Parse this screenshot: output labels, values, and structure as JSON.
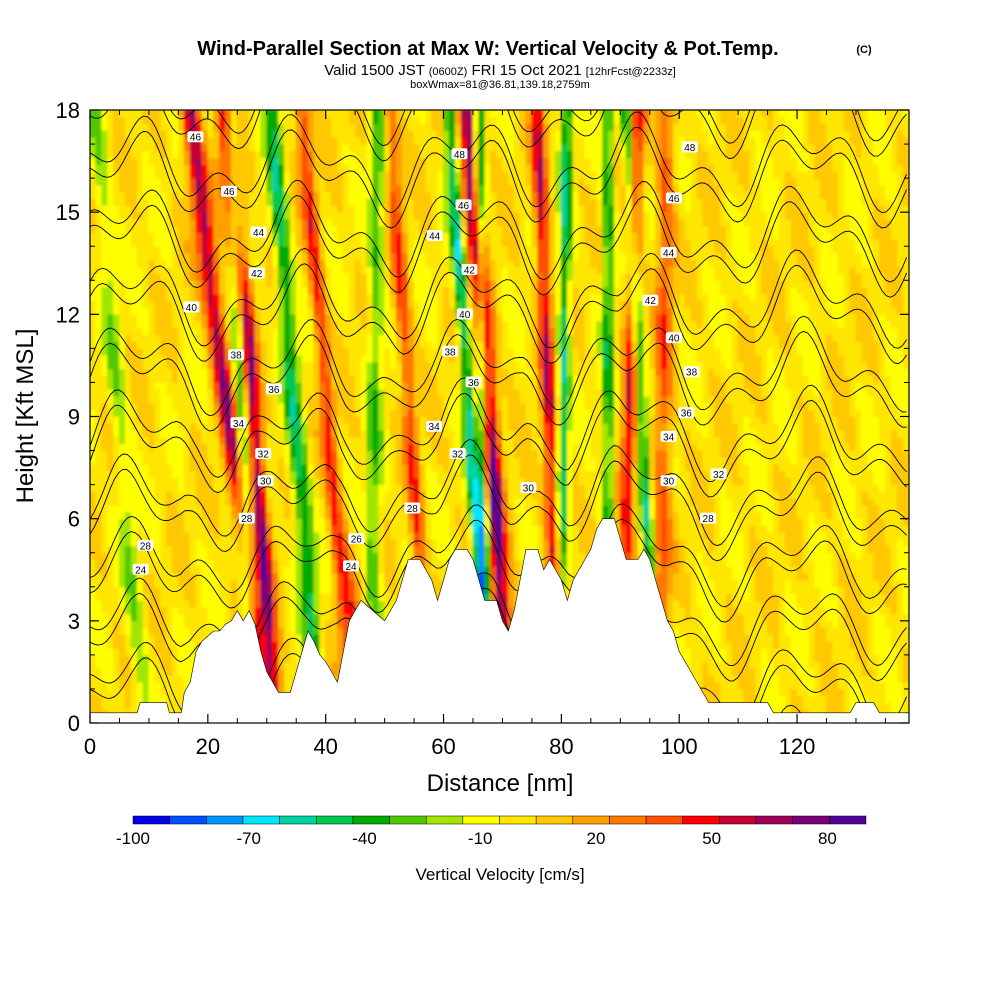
{
  "chart_data": {
    "type": "heatmap",
    "title": "Wind-Parallel Section at Max W: Vertical Velocity & Pot.Temp.",
    "copyright": "(C)",
    "subtitle": {
      "a": "Valid 1500 JST",
      "b": "(0600Z)",
      "c": "FRI 15 Oct 2021",
      "d": "[12hrFcst@2233z]"
    },
    "subtitle2": "boxWmax=81@36.81,139.18,2759m",
    "xlabel": "Distance [nm]",
    "ylabel": "Height [Kft MSL]",
    "xlim": [
      0,
      139
    ],
    "ylim": [
      0,
      18
    ],
    "x_ticks": [
      0,
      20,
      40,
      60,
      80,
      100,
      120
    ],
    "x_tick_labels": [
      "0",
      "20",
      "40",
      "60",
      "80",
      "100",
      "120"
    ],
    "y_ticks": [
      0,
      3,
      6,
      9,
      12,
      15,
      18
    ],
    "y_tick_labels": [
      "0",
      "3",
      "6",
      "9",
      "12",
      "15",
      "18"
    ],
    "colorbar": {
      "label": "Vertical Velocity [cm/s]",
      "tick_labels": [
        "-100",
        "-70",
        "-40",
        "-10",
        "20",
        "50",
        "80"
      ],
      "tick_values": [
        -100,
        -70,
        -40,
        -10,
        20,
        50,
        80
      ],
      "range": [
        -100,
        90
      ],
      "colors": [
        "#0000e6",
        "#0050ff",
        "#0096ff",
        "#00e6ff",
        "#00d2a0",
        "#00c850",
        "#00aa00",
        "#50c800",
        "#a0e600",
        "#ffff00",
        "#ffe600",
        "#ffc800",
        "#ffa000",
        "#ff7800",
        "#ff5000",
        "#ff0000",
        "#c80032",
        "#a0005a",
        "#780078",
        "#500096"
      ]
    },
    "terrain_kft": [
      [
        0,
        0.3
      ],
      [
        8,
        0.3
      ],
      [
        8.5,
        0.6
      ],
      [
        13,
        0.6
      ],
      [
        13.5,
        0.3
      ],
      [
        15.5,
        0.3
      ],
      [
        16,
        0.9
      ],
      [
        17,
        1.2
      ],
      [
        18,
        2.1
      ],
      [
        19,
        2.4
      ],
      [
        21,
        2.7
      ],
      [
        22,
        2.7
      ],
      [
        23,
        2.9
      ],
      [
        24,
        3.0
      ],
      [
        25,
        3.3
      ],
      [
        26,
        3.0
      ],
      [
        27,
        3.3
      ],
      [
        28,
        2.9
      ],
      [
        29,
        2.1
      ],
      [
        30,
        1.5
      ],
      [
        31,
        1.2
      ],
      [
        32,
        0.9
      ],
      [
        34,
        0.9
      ],
      [
        35,
        1.5
      ],
      [
        36,
        2.1
      ],
      [
        37,
        2.7
      ],
      [
        38,
        2.4
      ],
      [
        39,
        2.0
      ],
      [
        40,
        1.8
      ],
      [
        41,
        1.5
      ],
      [
        42,
        1.2
      ],
      [
        43,
        2.1
      ],
      [
        44,
        3.0
      ],
      [
        46,
        3.6
      ],
      [
        48,
        3.3
      ],
      [
        50,
        3.0
      ],
      [
        52,
        3.6
      ],
      [
        53,
        4.2
      ],
      [
        54,
        4.8
      ],
      [
        56,
        4.8
      ],
      [
        58,
        4.2
      ],
      [
        59,
        3.6
      ],
      [
        60,
        4.2
      ],
      [
        61,
        4.8
      ],
      [
        62,
        5.1
      ],
      [
        64,
        5.1
      ],
      [
        65,
        4.8
      ],
      [
        66,
        4.2
      ],
      [
        67,
        3.6
      ],
      [
        69,
        3.6
      ],
      [
        70,
        3.0
      ],
      [
        71,
        2.7
      ],
      [
        72,
        3.3
      ],
      [
        73,
        4.2
      ],
      [
        74,
        5.1
      ],
      [
        76,
        5.1
      ],
      [
        77,
        4.5
      ],
      [
        78,
        4.8
      ],
      [
        80,
        4.2
      ],
      [
        81,
        3.6
      ],
      [
        82,
        4.2
      ],
      [
        83,
        4.5
      ],
      [
        84,
        4.8
      ],
      [
        85,
        5.1
      ],
      [
        86,
        5.7
      ],
      [
        87,
        6.0
      ],
      [
        89,
        6.0
      ],
      [
        90,
        5.4
      ],
      [
        91,
        4.8
      ],
      [
        93,
        4.8
      ],
      [
        94,
        5.1
      ],
      [
        95,
        4.8
      ],
      [
        96,
        4.2
      ],
      [
        97,
        3.6
      ],
      [
        98,
        3.0
      ],
      [
        99,
        2.7
      ],
      [
        100,
        2.1
      ],
      [
        101,
        1.8
      ],
      [
        102,
        1.5
      ],
      [
        103,
        1.2
      ],
      [
        104,
        0.9
      ],
      [
        105,
        0.6
      ],
      [
        115,
        0.6
      ],
      [
        116,
        0.3
      ],
      [
        120,
        0.3
      ],
      [
        129,
        0.3
      ],
      [
        130,
        0.6
      ],
      [
        133,
        0.6
      ],
      [
        134,
        0.3
      ],
      [
        139,
        0.3
      ]
    ],
    "updraft_bands": [
      {
        "x_bottom": 28,
        "x_top": 17,
        "w": 65,
        "width": 1.6
      },
      {
        "x_bottom": 31,
        "x_top": 23,
        "w": 72,
        "width": 1.6
      },
      {
        "x_bottom": 44,
        "x_top": 36,
        "w": 45,
        "width": 1.3
      },
      {
        "x_bottom": 56,
        "x_top": 51,
        "w": 40,
        "width": 1.2
      },
      {
        "x_bottom": 70,
        "x_top": 64,
        "w": 80,
        "width": 1.7
      },
      {
        "x_bottom": 79,
        "x_top": 76,
        "w": 55,
        "width": 1.3
      },
      {
        "x_bottom": 91,
        "x_top": 93,
        "w": 48,
        "width": 1.3
      },
      {
        "x_bottom": 97,
        "x_top": 98,
        "w": 35,
        "width": 1.5
      }
    ],
    "downdraft_bands": [
      {
        "x_bottom": 27,
        "x_top": 24,
        "w": -55,
        "width": 1.2
      },
      {
        "x_bottom": 38,
        "x_top": 31,
        "w": -45,
        "width": 1.4
      },
      {
        "x_bottom": 66,
        "x_top": 61,
        "w": -55,
        "width": 1.1
      },
      {
        "x_bottom": 67,
        "x_top": 66,
        "w": -65,
        "width": 1.0
      },
      {
        "x_bottom": 80,
        "x_top": 81,
        "w": -50,
        "width": 1.0
      },
      {
        "x_bottom": 88,
        "x_top": 88,
        "w": -40,
        "width": 1.0
      },
      {
        "x_bottom": 95,
        "x_top": 91,
        "w": -45,
        "width": 1.0
      },
      {
        "x_bottom": 48,
        "x_top": 49,
        "w": -30,
        "width": 1.3
      },
      {
        "x_bottom": 9,
        "x_top": 1,
        "w": -20,
        "width": 1.5
      }
    ],
    "isentropes_C": [
      20,
      22,
      24,
      26,
      28,
      30,
      32,
      34,
      36,
      38,
      40,
      42,
      44,
      46,
      48
    ],
    "isentrope_labels": [
      {
        "x": 17.9,
        "y": 17.2,
        "text": "46"
      },
      {
        "x": 23.6,
        "y": 15.6,
        "text": "46"
      },
      {
        "x": 28.6,
        "y": 14.4,
        "text": "44"
      },
      {
        "x": 28.3,
        "y": 13.2,
        "text": "42"
      },
      {
        "x": 17.2,
        "y": 12.2,
        "text": "40"
      },
      {
        "x": 24.8,
        "y": 10.8,
        "text": "38"
      },
      {
        "x": 31.2,
        "y": 9.8,
        "text": "36"
      },
      {
        "x": 25.2,
        "y": 8.8,
        "text": "34"
      },
      {
        "x": 29.4,
        "y": 7.9,
        "text": "32"
      },
      {
        "x": 29.8,
        "y": 7.1,
        "text": "30"
      },
      {
        "x": 26.6,
        "y": 6.0,
        "text": "28"
      },
      {
        "x": 9.4,
        "y": 5.2,
        "text": "28"
      },
      {
        "x": 8.6,
        "y": 4.5,
        "text": "24"
      },
      {
        "x": 62.7,
        "y": 16.7,
        "text": "48"
      },
      {
        "x": 63.4,
        "y": 15.2,
        "text": "46"
      },
      {
        "x": 58.5,
        "y": 14.3,
        "text": "44"
      },
      {
        "x": 64.4,
        "y": 13.3,
        "text": "42"
      },
      {
        "x": 63.6,
        "y": 12.0,
        "text": "40"
      },
      {
        "x": 61.1,
        "y": 10.9,
        "text": "38"
      },
      {
        "x": 65.1,
        "y": 10.0,
        "text": "36"
      },
      {
        "x": 58.4,
        "y": 8.7,
        "text": "34"
      },
      {
        "x": 62.4,
        "y": 7.9,
        "text": "32"
      },
      {
        "x": 74.4,
        "y": 6.9,
        "text": "30"
      },
      {
        "x": 54.7,
        "y": 6.3,
        "text": "28"
      },
      {
        "x": 45.2,
        "y": 5.4,
        "text": "26"
      },
      {
        "x": 44.3,
        "y": 4.6,
        "text": "24"
      },
      {
        "x": 101.8,
        "y": 16.9,
        "text": "48"
      },
      {
        "x": 99.1,
        "y": 15.4,
        "text": "46"
      },
      {
        "x": 98.2,
        "y": 13.8,
        "text": "44"
      },
      {
        "x": 95.1,
        "y": 12.4,
        "text": "42"
      },
      {
        "x": 99.1,
        "y": 11.3,
        "text": "40"
      },
      {
        "x": 102.1,
        "y": 10.3,
        "text": "38"
      },
      {
        "x": 101.2,
        "y": 9.1,
        "text": "36"
      },
      {
        "x": 98.2,
        "y": 8.4,
        "text": "34"
      },
      {
        "x": 106.7,
        "y": 7.3,
        "text": "32"
      },
      {
        "x": 98.2,
        "y": 7.1,
        "text": "30"
      },
      {
        "x": 104.9,
        "y": 6.0,
        "text": "28"
      }
    ],
    "grid": false
  }
}
